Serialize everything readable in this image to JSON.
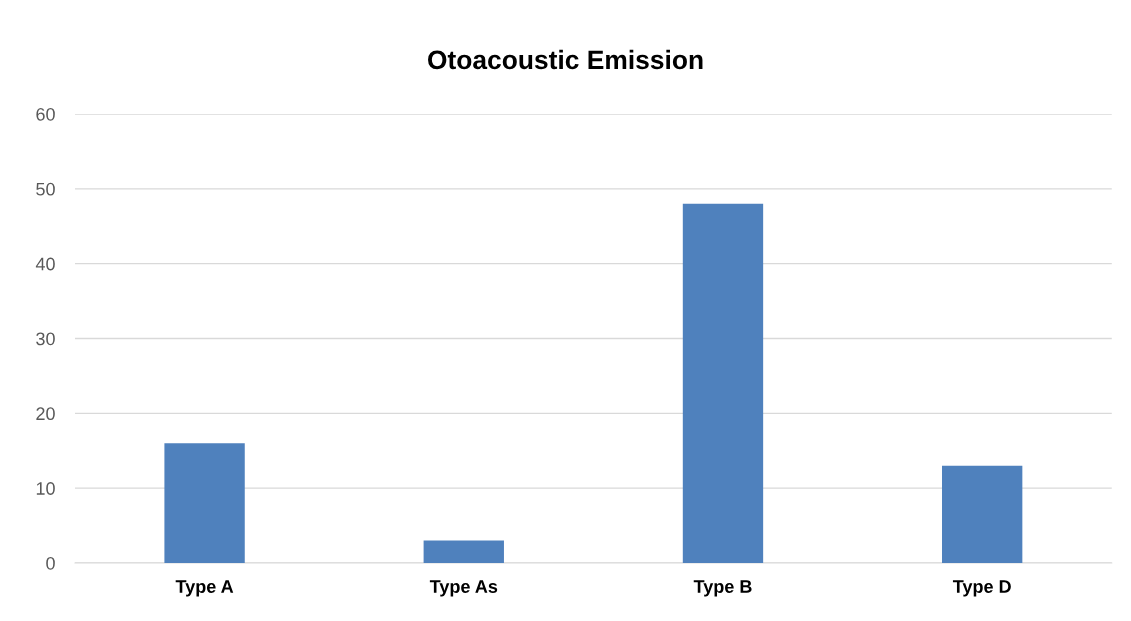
{
  "chart_data": {
    "type": "bar",
    "title": "Otoacoustic Emission",
    "categories": [
      "Type A",
      "Type As",
      "Type B",
      "Type D"
    ],
    "values": [
      16,
      3,
      48,
      13
    ],
    "color": "#4f81bd",
    "ylim": [
      0,
      60
    ],
    "yticks": [
      0,
      10,
      20,
      30,
      40,
      50,
      60
    ],
    "grid": "y",
    "legend": false
  }
}
